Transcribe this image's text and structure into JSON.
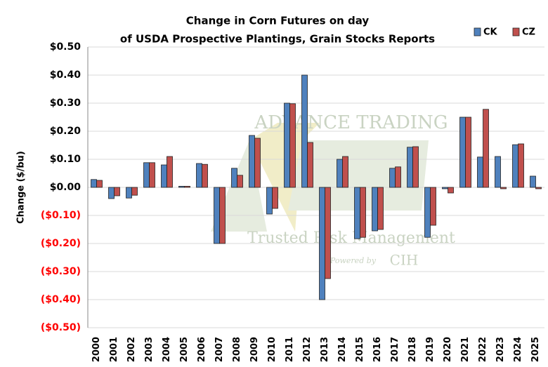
{
  "chart_data": {
    "type": "bar",
    "title": [
      "Change in Corn Futures on day",
      "of USDA Prospective Plantings, Grain Stocks Reports"
    ],
    "y_label": "Change ($/bu)",
    "watermark": [
      "ADVANCE TRADING",
      "Trusted Risk Management",
      "Powered by",
      "CIH"
    ],
    "categories": [
      "2000",
      "2001",
      "2002",
      "2003",
      "2004",
      "2005",
      "2006",
      "2007",
      "2008",
      "2009",
      "2010",
      "2011",
      "2012",
      "2013",
      "2014",
      "2015",
      "2016",
      "2017",
      "2018",
      "2019",
      "2020",
      "2021",
      "2022",
      "2023",
      "2024",
      "2025"
    ],
    "series": [
      {
        "name": "CK",
        "color": "#4f81bd",
        "values": [
          0.028,
          -0.04,
          -0.038,
          0.088,
          0.08,
          0.004,
          0.085,
          -0.2,
          0.068,
          0.185,
          -0.095,
          0.3,
          0.4,
          -0.4,
          0.1,
          -0.183,
          -0.155,
          0.068,
          0.143,
          -0.178,
          -0.005,
          0.25,
          0.108,
          0.11,
          0.152,
          0.04
        ]
      },
      {
        "name": "CZ",
        "color": "#c0504d",
        "values": [
          0.025,
          -0.03,
          -0.028,
          0.088,
          0.11,
          0.004,
          0.082,
          -0.2,
          0.043,
          0.175,
          -0.075,
          0.298,
          0.16,
          -0.325,
          0.11,
          -0.178,
          -0.15,
          0.073,
          0.145,
          -0.135,
          -0.02,
          0.25,
          0.278,
          -0.005,
          0.155,
          -0.005
        ]
      }
    ],
    "ylim": [
      -0.5,
      0.5
    ],
    "yticks": [
      {
        "value": 0.5,
        "label": "$0.50"
      },
      {
        "value": 0.4,
        "label": "$0.40"
      },
      {
        "value": 0.3,
        "label": "$0.30"
      },
      {
        "value": 0.2,
        "label": "$0.20"
      },
      {
        "value": 0.1,
        "label": "$0.10"
      },
      {
        "value": 0,
        "label": "$0.00"
      },
      {
        "value": -0.1,
        "label": "($0.10)"
      },
      {
        "value": -0.2,
        "label": "($0.20)"
      },
      {
        "value": -0.3,
        "label": "($0.30)"
      },
      {
        "value": -0.4,
        "label": "($0.40)"
      },
      {
        "value": -0.5,
        "label": "($0.50)"
      }
    ],
    "negative_tick_color": "#ff0000",
    "grid": true,
    "legend": "top-right"
  }
}
